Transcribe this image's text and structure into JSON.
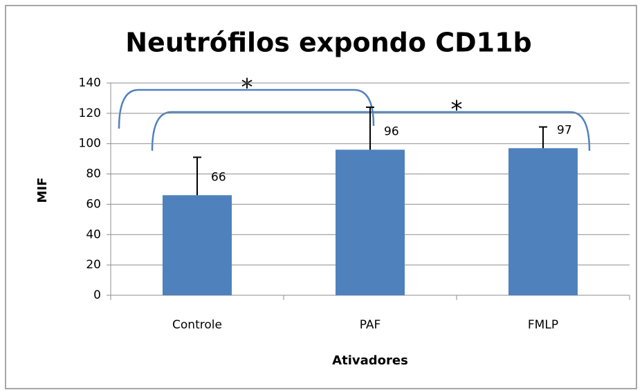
{
  "chart_data": {
    "type": "bar",
    "title": "Neutrófilos expondo CD11b",
    "x_label": "Ativadores",
    "y_label": "MIF",
    "categories": [
      "Controle",
      "PAF",
      "FMLP"
    ],
    "values": [
      66,
      96,
      97
    ],
    "errors": [
      25,
      28,
      14
    ],
    "color": "#4f81bd",
    "ylim": [
      0,
      140
    ],
    "yticks": [
      0,
      20,
      40,
      60,
      80,
      100,
      120,
      140
    ],
    "grid": true,
    "annotations": [
      {
        "text": "*"
      },
      {
        "text": "*"
      }
    ]
  }
}
